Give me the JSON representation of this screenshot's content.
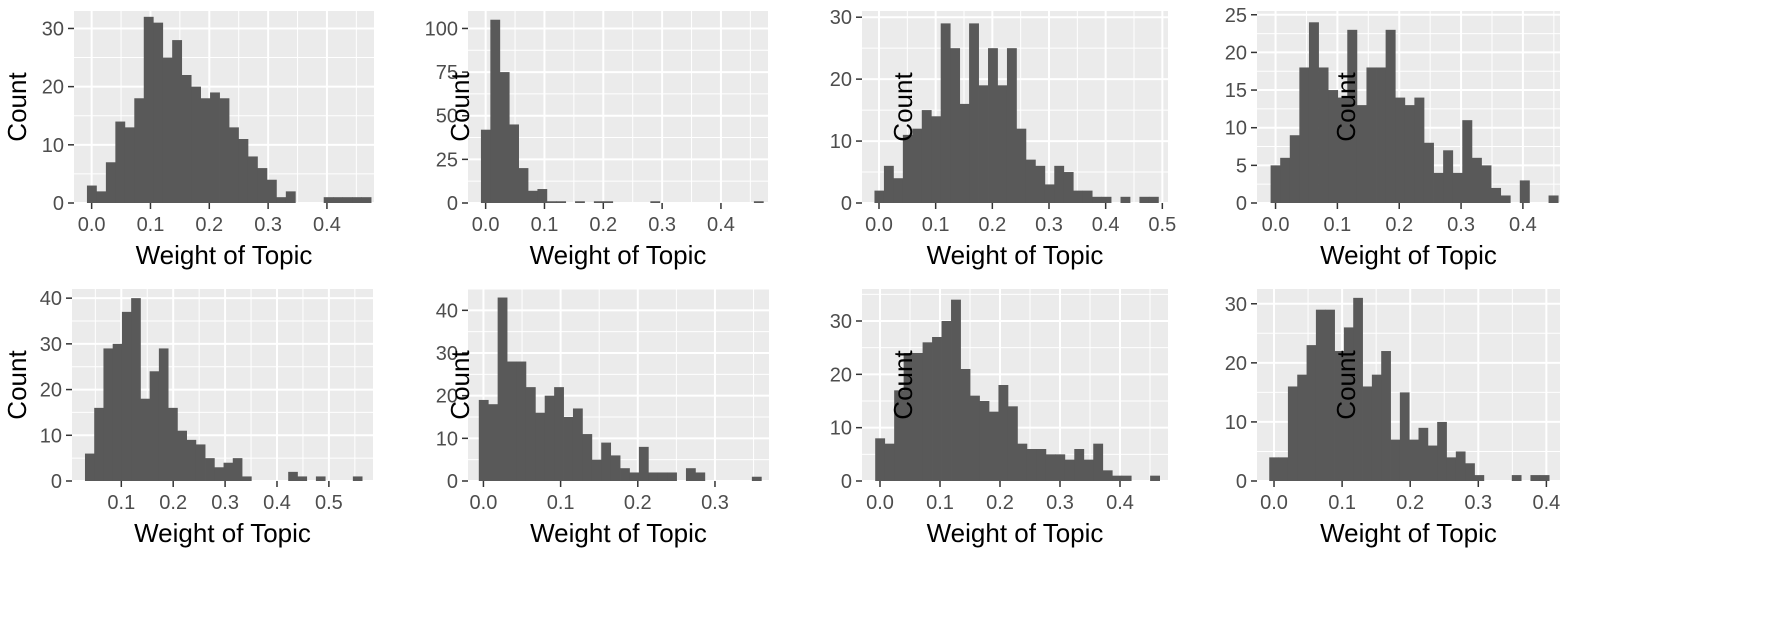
{
  "colors": {
    "panel_background": "#ebebeb",
    "gridline": "#ffffff",
    "bar_fill": "#595959",
    "tick_color": "#333333"
  },
  "chart_data": [
    {
      "type": "bar",
      "grid": true,
      "xlabel": "Weight of Topic",
      "ylabel": "Count",
      "xlim": [
        -0.03,
        0.48
      ],
      "ylim": [
        0,
        33
      ],
      "xticks": [
        0.0,
        0.1,
        0.2,
        0.3,
        0.4
      ],
      "xtick_labels": [
        "0.0",
        "0.1",
        "0.2",
        "0.3",
        "0.4"
      ],
      "yticks": [
        0,
        10,
        20,
        30
      ],
      "ytick_labels": [
        "0",
        "10",
        "20",
        "30"
      ],
      "bin_start": -0.008,
      "bin_width": 0.0161,
      "values": [
        3,
        2,
        7,
        14,
        13,
        18,
        32,
        31,
        25,
        28,
        22,
        20,
        18,
        19,
        18,
        13,
        11,
        8,
        6,
        4,
        1,
        2,
        0,
        0,
        0,
        1,
        1,
        1,
        1,
        1
      ]
    },
    {
      "type": "bar",
      "grid": true,
      "xlabel": "Weight of Topic",
      "ylabel": "Count",
      "xlim": [
        -0.03,
        0.48
      ],
      "ylim": [
        0,
        110
      ],
      "xticks": [
        0.0,
        0.1,
        0.2,
        0.3,
        0.4
      ],
      "xtick_labels": [
        "0.0",
        "0.1",
        "0.2",
        "0.3",
        "0.4"
      ],
      "yticks": [
        0,
        25,
        50,
        75,
        100
      ],
      "ytick_labels": [
        "0",
        "25",
        "50",
        "75",
        "100"
      ],
      "bin_start": -0.008,
      "bin_width": 0.016,
      "values": [
        42,
        105,
        75,
        45,
        20,
        7,
        8,
        1,
        1,
        0,
        1,
        0,
        1,
        1,
        0,
        0,
        0,
        0,
        1,
        0,
        0,
        0,
        0,
        0,
        0,
        0,
        0,
        0,
        0,
        1
      ]
    },
    {
      "type": "bar",
      "grid": true,
      "xlabel": "Weight of Topic",
      "ylabel": "Count",
      "xlim": [
        -0.03,
        0.51
      ],
      "ylim": [
        0,
        31
      ],
      "xticks": [
        0.0,
        0.1,
        0.2,
        0.3,
        0.4,
        0.5
      ],
      "xtick_labels": [
        "0.0",
        "0.1",
        "0.2",
        "0.3",
        "0.4",
        "0.5"
      ],
      "yticks": [
        0,
        10,
        20,
        30
      ],
      "ytick_labels": [
        "0",
        "10",
        "20",
        "30"
      ],
      "bin_start": -0.008,
      "bin_width": 0.0167,
      "values": [
        2,
        6,
        4,
        11,
        12,
        15,
        14,
        29,
        25,
        16,
        29,
        19,
        25,
        19,
        25,
        12,
        7,
        6,
        3,
        6,
        5,
        2,
        2,
        1,
        1,
        0,
        1,
        0,
        1,
        1
      ]
    },
    {
      "type": "bar",
      "grid": true,
      "xlabel": "Weight of Topic",
      "ylabel": "Count",
      "xlim": [
        -0.03,
        0.46
      ],
      "ylim": [
        0,
        25.5
      ],
      "xticks": [
        0.0,
        0.1,
        0.2,
        0.3,
        0.4
      ],
      "xtick_labels": [
        "0.0",
        "0.1",
        "0.2",
        "0.3",
        "0.4"
      ],
      "yticks": [
        0,
        5,
        10,
        15,
        20,
        25
      ],
      "ytick_labels": [
        "0",
        "5",
        "10",
        "15",
        "20",
        "25"
      ],
      "bin_start": -0.008,
      "bin_width": 0.0155,
      "values": [
        5,
        6,
        9,
        18,
        24,
        18,
        15,
        14,
        23,
        13,
        18,
        18,
        23,
        14,
        13,
        14,
        8,
        4,
        7,
        4,
        11,
        6,
        5,
        2,
        1,
        0,
        3,
        0,
        0,
        1
      ]
    },
    {
      "type": "bar",
      "grid": true,
      "xlabel": "Weight of Topic",
      "ylabel": "Count",
      "xlim": [
        0.005,
        0.585
      ],
      "ylim": [
        0,
        42
      ],
      "xticks": [
        0.1,
        0.2,
        0.3,
        0.4,
        0.5
      ],
      "xtick_labels": [
        "0.1",
        "0.2",
        "0.3",
        "0.4",
        "0.5"
      ],
      "yticks": [
        0,
        10,
        20,
        30,
        40
      ],
      "ytick_labels": [
        "0",
        "10",
        "20",
        "30",
        "40"
      ],
      "bin_start": 0.03,
      "bin_width": 0.0178,
      "values": [
        6,
        16,
        29,
        30,
        37,
        40,
        18,
        24,
        29,
        16,
        11,
        9,
        8,
        5,
        3,
        4,
        5,
        1,
        0,
        0,
        0,
        0,
        2,
        1,
        0,
        1,
        0,
        0,
        0,
        1
      ]
    },
    {
      "type": "bar",
      "grid": true,
      "xlabel": "Weight of Topic",
      "ylabel": "Count",
      "xlim": [
        -0.02,
        0.37
      ],
      "ylim": [
        0,
        45
      ],
      "xticks": [
        0.0,
        0.1,
        0.2,
        0.3
      ],
      "xtick_labels": [
        "0.0",
        "0.1",
        "0.2",
        "0.3"
      ],
      "yticks": [
        0,
        10,
        20,
        30,
        40
      ],
      "ytick_labels": [
        "0",
        "10",
        "20",
        "30",
        "40"
      ],
      "bin_start": -0.006,
      "bin_width": 0.0122,
      "values": [
        19,
        18,
        43,
        28,
        28,
        22,
        16,
        20,
        22,
        15,
        17,
        11,
        5,
        9,
        6,
        3,
        2,
        8,
        2,
        2,
        2,
        0,
        3,
        2,
        0,
        0,
        0,
        0,
        0,
        1
      ]
    },
    {
      "type": "bar",
      "grid": true,
      "xlabel": "Weight of Topic",
      "ylabel": "Count",
      "xlim": [
        -0.03,
        0.48
      ],
      "ylim": [
        0,
        36
      ],
      "xticks": [
        0.0,
        0.1,
        0.2,
        0.3,
        0.4
      ],
      "xtick_labels": [
        "0.0",
        "0.1",
        "0.2",
        "0.3",
        "0.4"
      ],
      "yticks": [
        0,
        10,
        20,
        30
      ],
      "ytick_labels": [
        "0",
        "10",
        "20",
        "30"
      ],
      "bin_start": -0.008,
      "bin_width": 0.0158,
      "values": [
        8,
        7,
        17,
        24,
        24,
        26,
        27,
        30,
        34,
        21,
        16,
        15,
        13,
        18,
        14,
        7,
        6,
        6,
        5,
        5,
        4,
        6,
        4,
        7,
        2,
        1,
        1,
        0,
        0,
        1
      ]
    },
    {
      "type": "bar",
      "grid": true,
      "xlabel": "Weight of Topic",
      "ylabel": "Count",
      "xlim": [
        -0.025,
        0.42
      ],
      "ylim": [
        0,
        32.5
      ],
      "xticks": [
        0.0,
        0.1,
        0.2,
        0.3,
        0.4
      ],
      "xtick_labels": [
        "0.0",
        "0.1",
        "0.2",
        "0.3",
        "0.4"
      ],
      "yticks": [
        0,
        10,
        20,
        30
      ],
      "ytick_labels": [
        "0",
        "10",
        "20",
        "30"
      ],
      "bin_start": -0.007,
      "bin_width": 0.0137,
      "values": [
        4,
        4,
        16,
        18,
        23,
        29,
        29,
        22,
        26,
        31,
        16,
        18,
        22,
        7,
        15,
        7,
        9,
        6,
        10,
        4,
        5,
        3,
        1,
        0,
        0,
        0,
        1,
        0,
        1,
        1
      ]
    }
  ]
}
